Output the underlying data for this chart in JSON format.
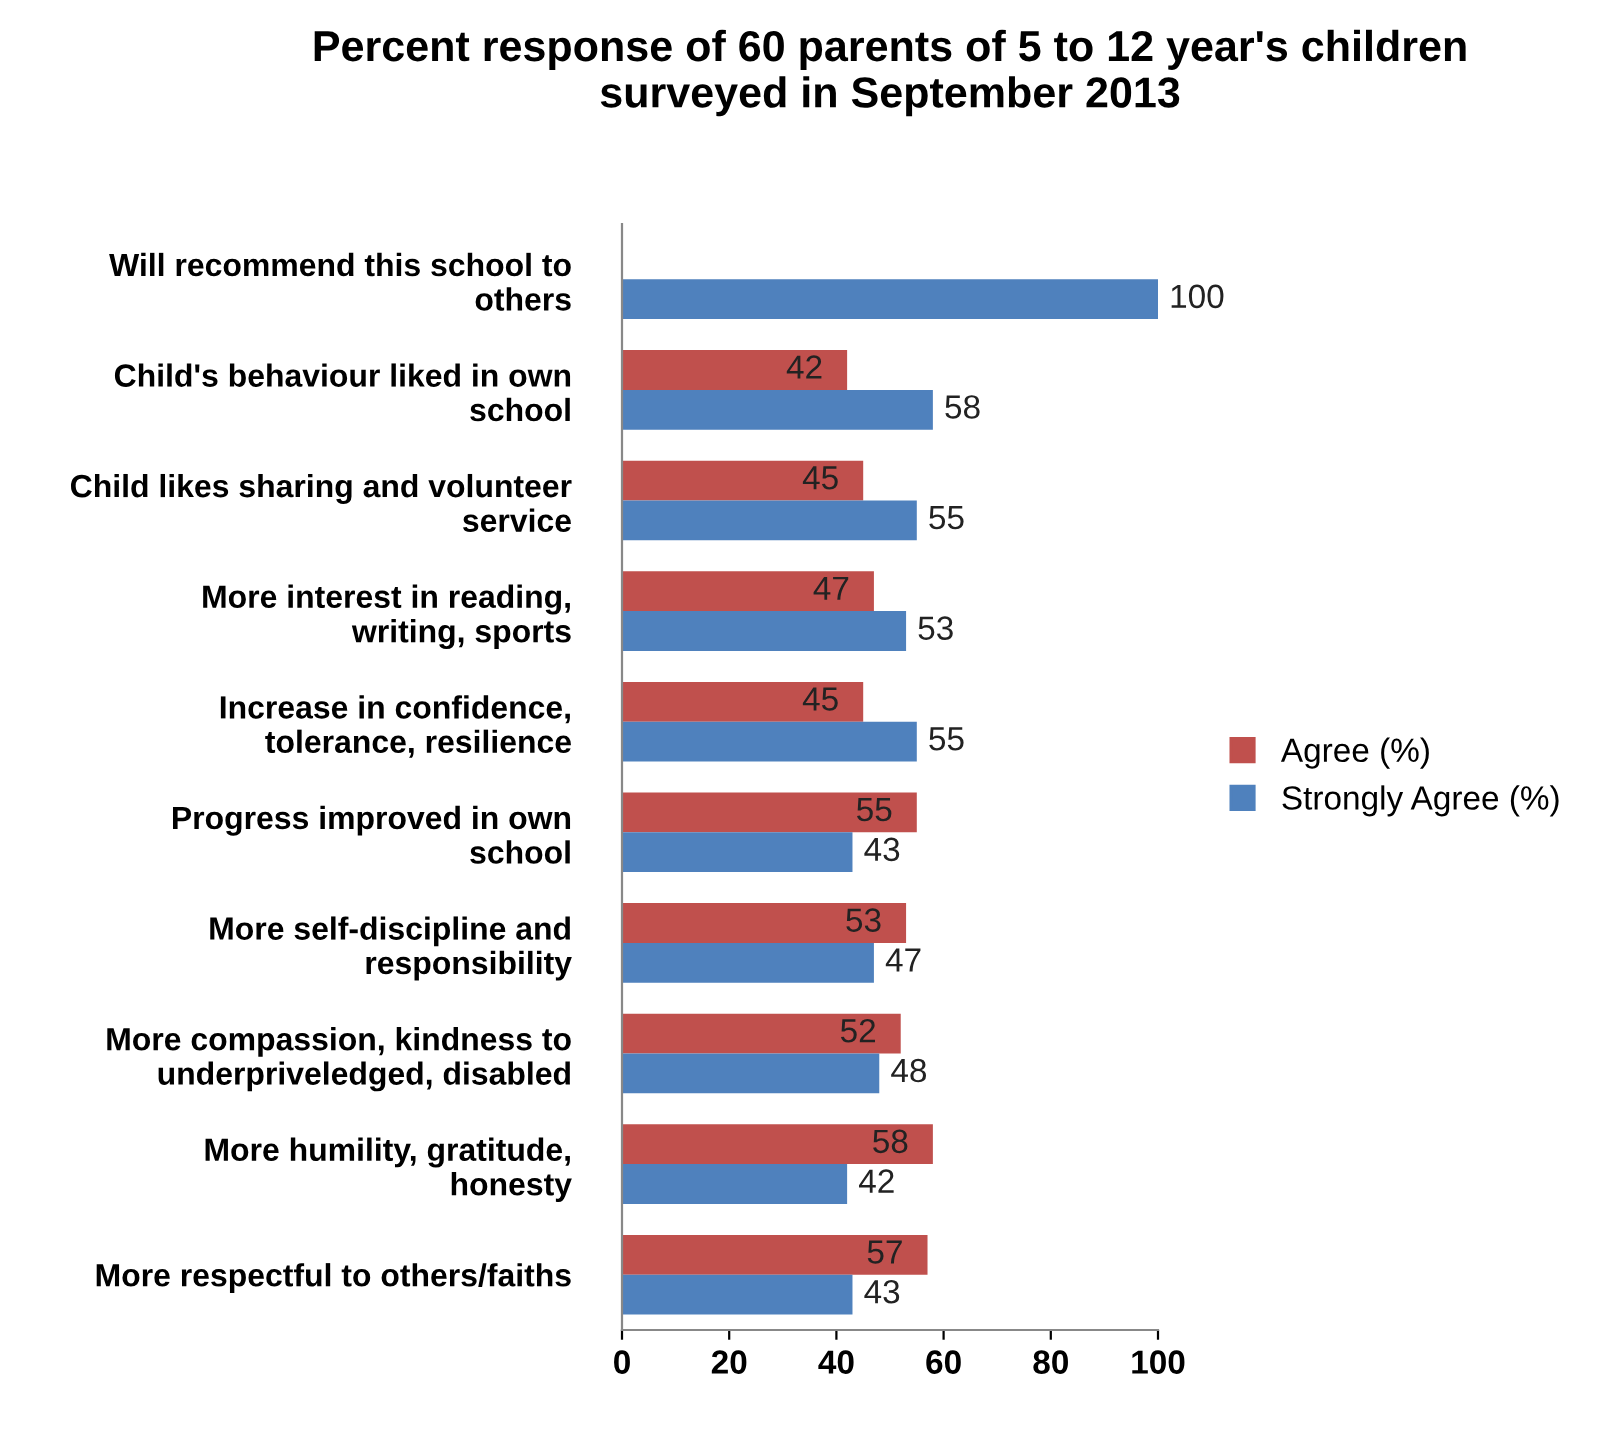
{
  "chart_data": {
    "type": "bar",
    "orientation": "horizontal",
    "title": "Percent response of 60 parents of 5 to 12 year's children\nsurveyed in September 2013",
    "categories": [
      "Will recommend this school to\nothers",
      "Child's behaviour liked in own\nschool",
      "Child likes sharing and volunteer\nservice",
      "More interest in reading,\nwriting, sports",
      "Increase in confidence,\ntolerance, resilience",
      "Progress improved in own\nschool",
      "More self-discipline and\nresponsibility",
      "More compassion, kindness to\nunderpriveledged, disabled",
      "More humility, gratitude,\nhonesty",
      "More respectful to others/faiths"
    ],
    "series": [
      {
        "name": "Agree (%)",
        "color": "#c0504d",
        "values": [
          null,
          42,
          45,
          47,
          45,
          55,
          53,
          52,
          58,
          57
        ]
      },
      {
        "name": "Strongly Agree (%)",
        "color": "#4f81bd",
        "values": [
          100,
          58,
          55,
          53,
          55,
          43,
          47,
          48,
          42,
          43
        ]
      }
    ],
    "xlim": [
      0,
      100
    ],
    "xticks": [
      0,
      20,
      40,
      60,
      80,
      100
    ],
    "data_labels": true,
    "legend": "right",
    "grid": false
  }
}
